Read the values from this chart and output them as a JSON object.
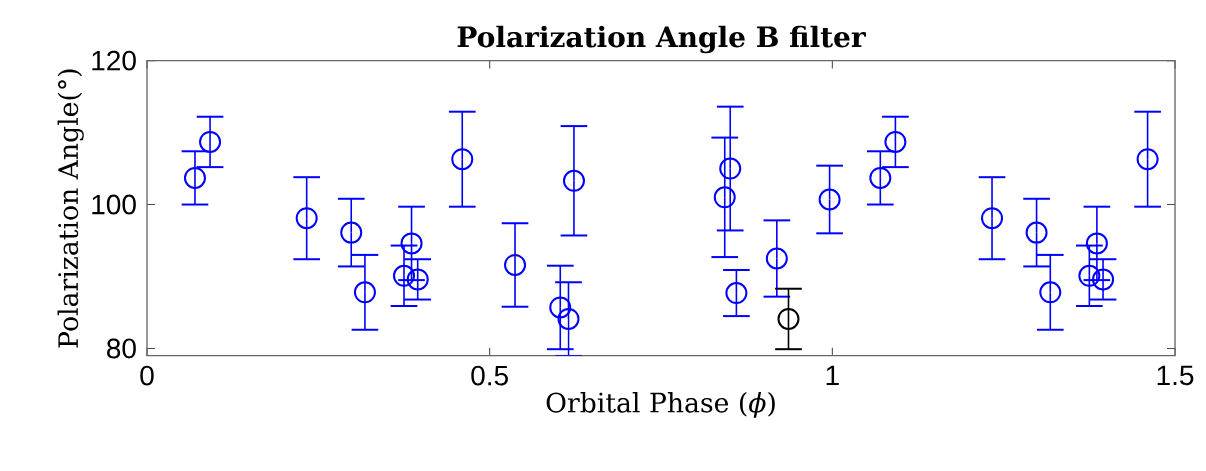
{
  "chart_data": {
    "type": "scatter",
    "title": "Polarization Angle B filter",
    "xlabel": "Orbital Phase (*ϕ*)",
    "ylabel": "Polarization Angle(°)",
    "xlim": [
      0,
      1.5
    ],
    "xticks": [
      0,
      0.5,
      1,
      1.5
    ],
    "ylim": [
      79,
      120
    ],
    "yticks": [
      80,
      100,
      120
    ],
    "grid": false,
    "marker": "circle",
    "series": [
      {
        "color": "#0000ff",
        "x": [
          0.07,
          0.092,
          0.233,
          0.298,
          0.318,
          0.375,
          0.386,
          0.395,
          0.46,
          0.537,
          0.603,
          0.615,
          0.623,
          0.843,
          0.851,
          0.86,
          0.919,
          0.996,
          1.07,
          1.092,
          1.233,
          1.298,
          1.318,
          1.375,
          1.386,
          1.395,
          1.46
        ],
        "values": [
          103.7,
          108.7,
          98.1,
          96.1,
          87.8,
          90.1,
          94.6,
          89.6,
          106.3,
          91.6,
          85.7,
          84.1,
          103.3,
          101.0,
          105.0,
          87.7,
          92.5,
          100.7,
          103.7,
          108.7,
          98.1,
          96.1,
          87.8,
          90.1,
          94.6,
          89.6,
          106.3
        ],
        "errors": [
          3.7,
          3.5,
          5.7,
          4.7,
          5.2,
          4.2,
          5.1,
          2.8,
          6.6,
          5.8,
          5.8,
          5.1,
          7.6,
          8.3,
          8.6,
          3.2,
          5.3,
          4.7,
          3.7,
          3.5,
          5.7,
          4.7,
          5.2,
          4.2,
          5.1,
          2.8,
          6.6
        ]
      },
      {
        "color": "#000000",
        "x": [
          0.936
        ],
        "values": [
          84.1
        ],
        "errors": [
          4.2
        ]
      }
    ]
  }
}
